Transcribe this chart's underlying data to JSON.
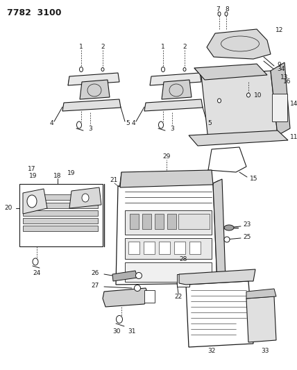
{
  "title": "7782  3100",
  "bg_color": "#ffffff",
  "line_color": "#1a1a1a",
  "text_color": "#1a1a1a",
  "fig_width": 4.28,
  "fig_height": 5.33,
  "dpi": 100,
  "label_fontsize": 6.5
}
